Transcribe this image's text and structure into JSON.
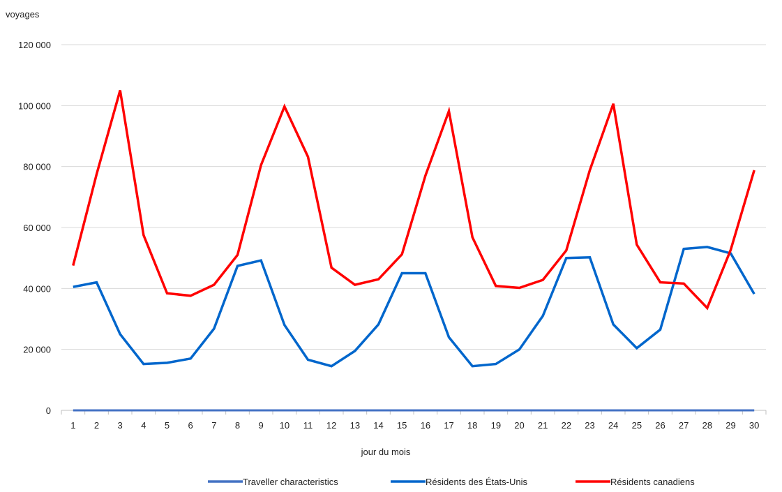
{
  "chart_data": {
    "type": "line",
    "title": "",
    "ylabel": "voyages",
    "xlabel": "jour du mois",
    "ylim": [
      0,
      120000
    ],
    "y_ticks": [
      0,
      20000,
      40000,
      60000,
      80000,
      100000,
      120000
    ],
    "y_tick_labels": [
      "0",
      "20 000",
      "40 000",
      "60 000",
      "80 000",
      "100 000",
      "120 000"
    ],
    "x": [
      "1",
      "2",
      "3",
      "4",
      "5",
      "6",
      "7",
      "8",
      "9",
      "10",
      "11",
      "12",
      "13",
      "14",
      "15",
      "16",
      "17",
      "18",
      "19",
      "20",
      "21",
      "22",
      "23",
      "24",
      "25",
      "26",
      "27",
      "28",
      "29",
      "30"
    ],
    "grid": true,
    "legend_position": "bottom",
    "series": [
      {
        "name": "Traveller characteristics",
        "color": "#4472c4",
        "values": [
          0,
          0,
          0,
          0,
          0,
          0,
          0,
          0,
          0,
          0,
          0,
          0,
          0,
          0,
          0,
          0,
          0,
          0,
          0,
          0,
          0,
          0,
          0,
          0,
          0,
          0,
          0,
          0,
          0,
          0
        ]
      },
      {
        "name": "Résidents des États-Unis",
        "color": "#0066cc",
        "values": [
          40500,
          42000,
          25000,
          15200,
          15600,
          17000,
          26800,
          47400,
          49200,
          28000,
          16600,
          14500,
          19500,
          28200,
          45000,
          45000,
          24000,
          14500,
          15200,
          20000,
          31000,
          50000,
          50200,
          28200,
          20400,
          26500,
          53000,
          53600,
          51500,
          38200
        ]
      },
      {
        "name": "Résidents canadiens",
        "color": "#ff0000",
        "values": [
          47500,
          77500,
          105000,
          57500,
          38400,
          37600,
          41200,
          51000,
          80500,
          99700,
          83200,
          46800,
          41200,
          43000,
          51200,
          77000,
          98200,
          56800,
          40800,
          40200,
          42800,
          52500,
          78800,
          100600,
          54400,
          42000,
          41600,
          33600,
          52700,
          78800
        ]
      }
    ]
  }
}
